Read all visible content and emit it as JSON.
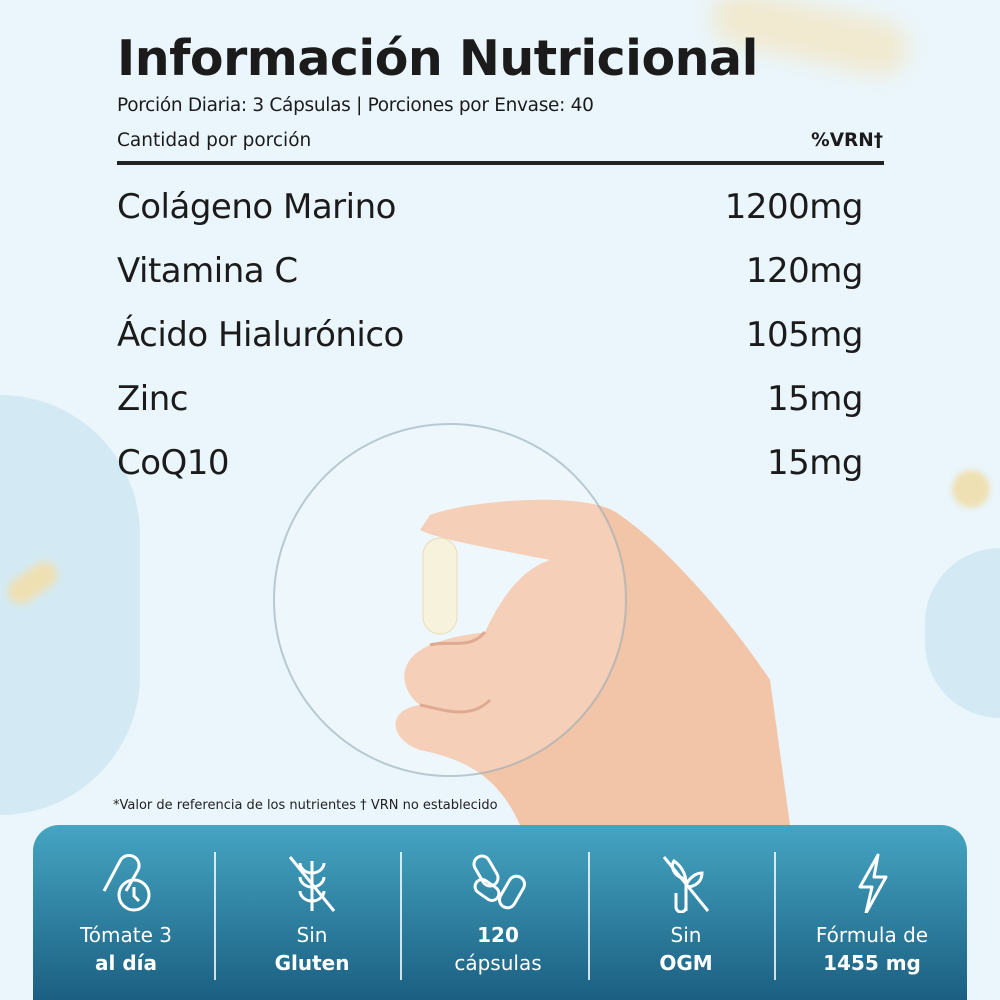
{
  "header": {
    "title": "Información Nutricional",
    "serving": "Porción Diaria: 3 Cápsulas  |  Porciones por Envase: 40",
    "amount_label": "Cantidad por porción",
    "vrn_label": "%VRN†"
  },
  "nutrients": [
    {
      "name": "Colágeno Marino",
      "amount": "1200mg"
    },
    {
      "name": "Vitamina C",
      "amount": "120mg"
    },
    {
      "name": "Ácido Hialurónico",
      "amount": "105mg"
    },
    {
      "name": "Zinc",
      "amount": "15mg"
    },
    {
      "name": "CoQ10",
      "amount": "15mg"
    }
  ],
  "footnote": "*Valor de referencia de los nutrientes † VRN no establecido",
  "features": [
    {
      "icon": "capsule-clock-icon",
      "line1": "Tómate 3",
      "line2": "al día"
    },
    {
      "icon": "no-wheat-icon",
      "line1": "Sin",
      "line2": "Gluten"
    },
    {
      "icon": "capsules-icon",
      "line1": "120",
      "line2": "cápsulas"
    },
    {
      "icon": "no-gmo-plant-icon",
      "line1": "Sin",
      "line2": "OGM"
    },
    {
      "icon": "lightning-icon",
      "line1": "Fórmula de",
      "line2": "1455 mg"
    }
  ],
  "colors": {
    "background": "#eaf6fc",
    "panel_top": "#45a5c2",
    "panel_bottom": "#1b5f82",
    "text": "#1b1b1b"
  }
}
